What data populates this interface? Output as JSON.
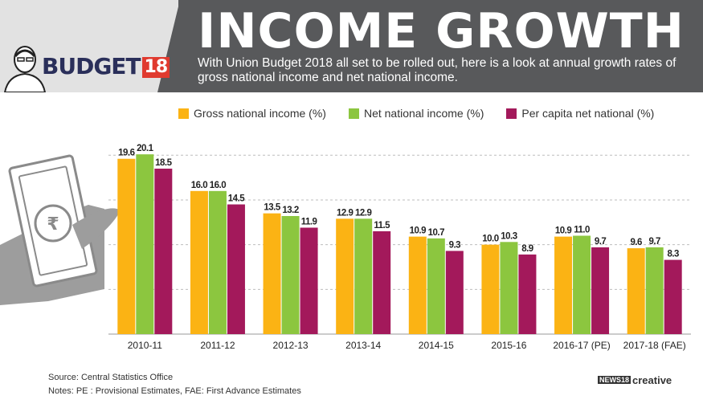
{
  "header": {
    "title": "INCOME GROWTH",
    "subtitle": "With Union Budget 2018 all set to be rolled out, here is  a look at annual growth rates of gross national income and net national income.",
    "logo_word": "BUDGET",
    "logo_year": "18"
  },
  "chart_data": {
    "type": "bar",
    "categories": [
      "2010-11",
      "2011-12",
      "2012-13",
      "2013-14",
      "2014-15",
      "2015-16",
      "2016-17 (PE)",
      "2017-18 (FAE)"
    ],
    "series": [
      {
        "name": "Gross national income (%)",
        "color": "#fbb314",
        "values": [
          19.6,
          16.0,
          13.5,
          12.9,
          10.9,
          10.0,
          10.9,
          9.6
        ]
      },
      {
        "name": "Net national income (%)",
        "color": "#8cc63f",
        "values": [
          20.1,
          16.0,
          13.2,
          12.9,
          10.7,
          10.3,
          11.0,
          9.7
        ]
      },
      {
        "name": "Per capita net national (%)",
        "color": "#a3195b",
        "values": [
          18.5,
          14.5,
          11.9,
          11.5,
          9.3,
          8.9,
          9.7,
          8.3
        ]
      }
    ],
    "ylim": [
      0,
      22
    ],
    "grid": true,
    "legend_position": "top"
  },
  "footer": {
    "source": "Source: Central Statistics Office",
    "notes": "Notes: PE : Provisional Estimates, FAE: First Advance Estimates",
    "credit_prefix": "NEWS18",
    "credit": "creative"
  }
}
